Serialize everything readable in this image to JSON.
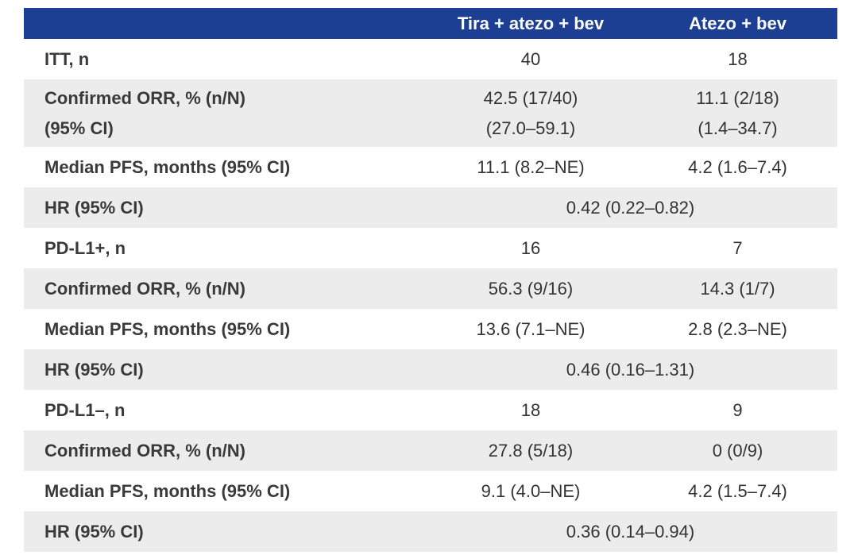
{
  "header": {
    "col_label": "",
    "col_a": "Tira + atezo + bev",
    "col_b": "Atezo + bev"
  },
  "rows": [
    {
      "label": "ITT, n",
      "a": "40",
      "b": "18"
    },
    {
      "label_line1": "Confirmed ORR, % (n/N)",
      "label_line2": "(95% CI)",
      "a_line1": "42.5 (17/40)",
      "a_line2": "(27.0–59.1)",
      "b_line1": "11.1 (2/18)",
      "b_line2": "(1.4–34.7)"
    },
    {
      "label": "Median PFS, months (95% CI)",
      "a": "11.1 (8.2–NE)",
      "b": "4.2 (1.6–7.4)"
    },
    {
      "label": "HR (95% CI)",
      "span": "0.42 (0.22–0.82)"
    },
    {
      "label": "PD-L1+, n",
      "a": "16",
      "b": "7"
    },
    {
      "label": "Confirmed ORR, % (n/N)",
      "a": "56.3 (9/16)",
      "b": "14.3 (1/7)"
    },
    {
      "label": "Median PFS, months (95% CI)",
      "a": "13.6 (7.1–NE)",
      "b": "2.8 (2.3–NE)"
    },
    {
      "label": "HR (95% CI)",
      "span": "0.46 (0.16–1.31)"
    },
    {
      "label": "PD-L1–, n",
      "a": "18",
      "b": "9"
    },
    {
      "label": "Confirmed ORR, % (n/N)",
      "a": "27.8 (5/18)",
      "b": "0 (0/9)"
    },
    {
      "label": "Median PFS, months (95% CI)",
      "a": "9.1 (4.0–NE)",
      "b": "4.2 (1.5–7.4)"
    },
    {
      "label": "HR (95% CI)",
      "span": "0.36 (0.14–0.94)"
    }
  ],
  "colors": {
    "header_bg": "#1c3f94",
    "header_text": "#ffffff",
    "shade_row": "#ececec",
    "body_text": "#333333"
  }
}
